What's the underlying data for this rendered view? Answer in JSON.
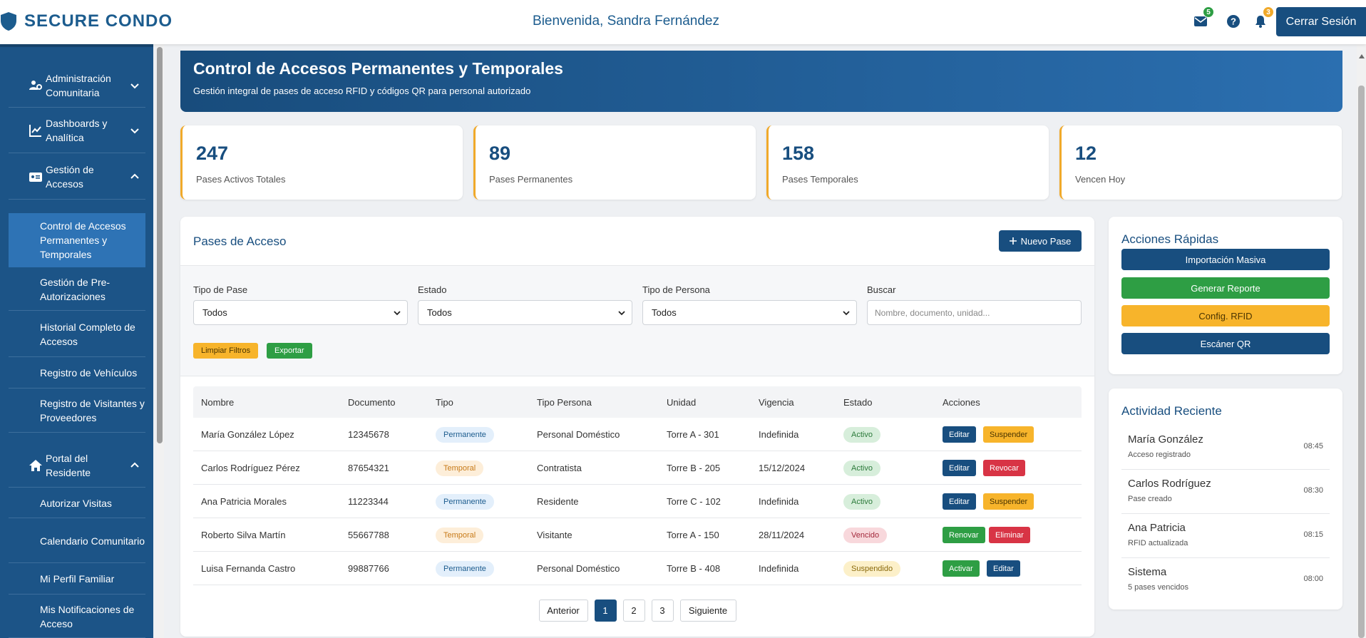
{
  "header": {
    "brand": "SECURE CONDO",
    "welcome": "Bienvenida, Sandra Fernández",
    "mail_badge": "5",
    "bell_badge": "3",
    "logout_label": "Cerrar Sesión"
  },
  "sidebar": {
    "main_items": [
      {
        "label": "Administración Comunitaria",
        "icon": "users-cog-icon",
        "expanded": false
      },
      {
        "label": "Dashboards y Analítica",
        "icon": "line-chart-icon",
        "expanded": false
      },
      {
        "label": "Gestión de Accesos",
        "icon": "id-card-icon",
        "expanded": true
      },
      {
        "label": "Portal del Residente",
        "icon": "home-icon",
        "expanded": true
      }
    ],
    "access_sub_items": [
      "Control de Accesos Permanentes y Temporales",
      "Gestión de Pre-Autorizaciones",
      "Historial Completo de Accesos",
      "Registro de Vehículos",
      "Registro de Visitantes y Proveedores"
    ],
    "resident_sub_items": [
      "Autorizar Visitas",
      "Calendario Comunitario",
      "Mi Perfil Familiar",
      "Mis Notificaciones de Acceso"
    ]
  },
  "banner": {
    "title": "Control de Accesos Permanentes y Temporales",
    "subtitle": "Gestión integral de pases de acceso RFID y códigos QR para personal autorizado"
  },
  "stats": [
    {
      "value": "247",
      "label": "Pases Activos Totales"
    },
    {
      "value": "89",
      "label": "Pases Permanentes"
    },
    {
      "value": "158",
      "label": "Pases Temporales"
    },
    {
      "value": "12",
      "label": "Vencen Hoy"
    }
  ],
  "passes": {
    "title": "Pases de Acceso",
    "new_button": "Nuevo Pase",
    "filters": {
      "type_label": "Tipo de Pase",
      "type_value": "Todos",
      "status_label": "Estado",
      "status_value": "Todos",
      "person_label": "Tipo de Persona",
      "person_value": "Todos",
      "search_label": "Buscar",
      "search_placeholder": "Nombre, documento, unidad...",
      "clear_label": "Limpiar Filtros",
      "export_label": "Exportar"
    },
    "columns": [
      "Nombre",
      "Documento",
      "Tipo",
      "Tipo Persona",
      "Unidad",
      "Vigencia",
      "Estado",
      "Acciones"
    ],
    "rows": [
      {
        "name": "María González López",
        "doc": "12345678",
        "type": "Permanente",
        "person": "Personal Doméstico",
        "unit": "Torre A - 301",
        "validity": "Indefinida",
        "status": "Activo",
        "actions": [
          "Editar",
          "Suspender"
        ]
      },
      {
        "name": "Carlos Rodríguez Pérez",
        "doc": "87654321",
        "type": "Temporal",
        "person": "Contratista",
        "unit": "Torre B - 205",
        "validity": "15/12/2024",
        "status": "Activo",
        "actions": [
          "Editar",
          "Revocar"
        ]
      },
      {
        "name": "Ana Patricia Morales",
        "doc": "11223344",
        "type": "Permanente",
        "person": "Residente",
        "unit": "Torre C - 102",
        "validity": "Indefinida",
        "status": "Activo",
        "actions": [
          "Editar",
          "Suspender"
        ]
      },
      {
        "name": "Roberto Silva Martín",
        "doc": "55667788",
        "type": "Temporal",
        "person": "Visitante",
        "unit": "Torre A - 150",
        "validity": "28/11/2024",
        "status": "Vencido",
        "actions": [
          "Renovar",
          "Eliminar"
        ]
      },
      {
        "name": "Luisa Fernanda Castro",
        "doc": "99887766",
        "type": "Permanente",
        "person": "Personal Doméstico",
        "unit": "Torre B - 408",
        "validity": "Indefinida",
        "status": "Suspendido",
        "actions": [
          "Activar",
          "Editar"
        ]
      }
    ],
    "pagination": {
      "prev": "Anterior",
      "pages": [
        "1",
        "2",
        "3"
      ],
      "current": "1",
      "next": "Siguiente"
    }
  },
  "quick_actions": {
    "title": "Acciones Rápidas",
    "buttons": [
      "Importación Masiva",
      "Generar Reporte",
      "Config. RFID",
      "Escáner QR"
    ]
  },
  "recent_activity": {
    "title": "Actividad Reciente",
    "items": [
      {
        "name": "María González",
        "desc": "Acceso registrado",
        "time": "08:45"
      },
      {
        "name": "Carlos Rodríguez",
        "desc": "Pase creado",
        "time": "08:30"
      },
      {
        "name": "Ana Patricia",
        "desc": "RFID actualizada",
        "time": "08:15"
      },
      {
        "name": "Sistema",
        "desc": "5 pases vencidos",
        "time": "08:00"
      }
    ]
  },
  "colors": {
    "primary": "#184e7f",
    "sidebar": "#1c5487",
    "accent_yellow": "#f7b42b",
    "success": "#2e9e44",
    "danger": "#d83445"
  }
}
